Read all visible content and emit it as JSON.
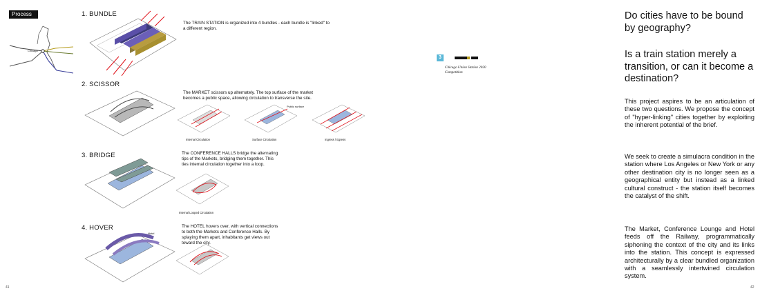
{
  "left_page": {
    "process_label": "Process",
    "map": {
      "city_label": "Chicago"
    },
    "steps": [
      {
        "title": "1. BUNDLE",
        "description": "The TRAIN STATION is organized into 4 bundles - each bundle is \"linked\" to a different region.",
        "captions": []
      },
      {
        "title": "2. SCISSOR",
        "description": "The MARKET scissors up alternately. The top surface of the market becomes a public space, allowing circulation to transverse the site.",
        "captions": [
          "Internal Circulation",
          "Surface Circulation",
          "Ingress / Egress"
        ],
        "annotation": "Public surface"
      },
      {
        "title": "3. BRIDGE",
        "description": "The CONFERENCE HALLS bridge the alternating tips of the Markets, bridging them together. This ties internal circulation together into a loop.",
        "captions": [
          "Internal Looped Circulation"
        ]
      },
      {
        "title": "4. HOVER",
        "description": "The HOTEL hovers over, with vertical connections to both the Markets and Conference Halls. By splaying them apart, inhabitants get views out toward the city.",
        "captions": [],
        "annotation": "Hotel"
      }
    ],
    "page_number": "41"
  },
  "competition": {
    "number": "3",
    "line1": "Chicago Union Station 2020",
    "line2": "Competition"
  },
  "right_page": {
    "question1": "Do cities have to be bound by geography?",
    "question2": "Is a train station merely a transition, or can it become a destination?",
    "paragraphs": [
      "This project aspires to be an articulation of these two questions. We propose the concept of \"hyper-linking\" cities together by exploiting the inherent potential of the brief.",
      "We seek to create a simulacra condition in the station where Los Angeles or New York or any other destination city is no longer seen as a geographical entity but instead as a linked cultural construct - the station itself becomes the catalyst of the shift.",
      "The Market, Conference Lounge and Hotel feeds off the Railway, programmatically siphoning the context of the city and its links into the station. This concept is expressed architecturally by a clear bundled organization with a seamlessly intertwined circulation system."
    ],
    "page_number": "42"
  },
  "colors": {
    "rail_red": "#e0141c",
    "bundle_purple": "#5a4fa8",
    "bundle_olive": "#a89030",
    "market_blue": "#9cb6de",
    "conference_teal": "#7f9b96",
    "badge_blue": "#5bb8d8"
  }
}
